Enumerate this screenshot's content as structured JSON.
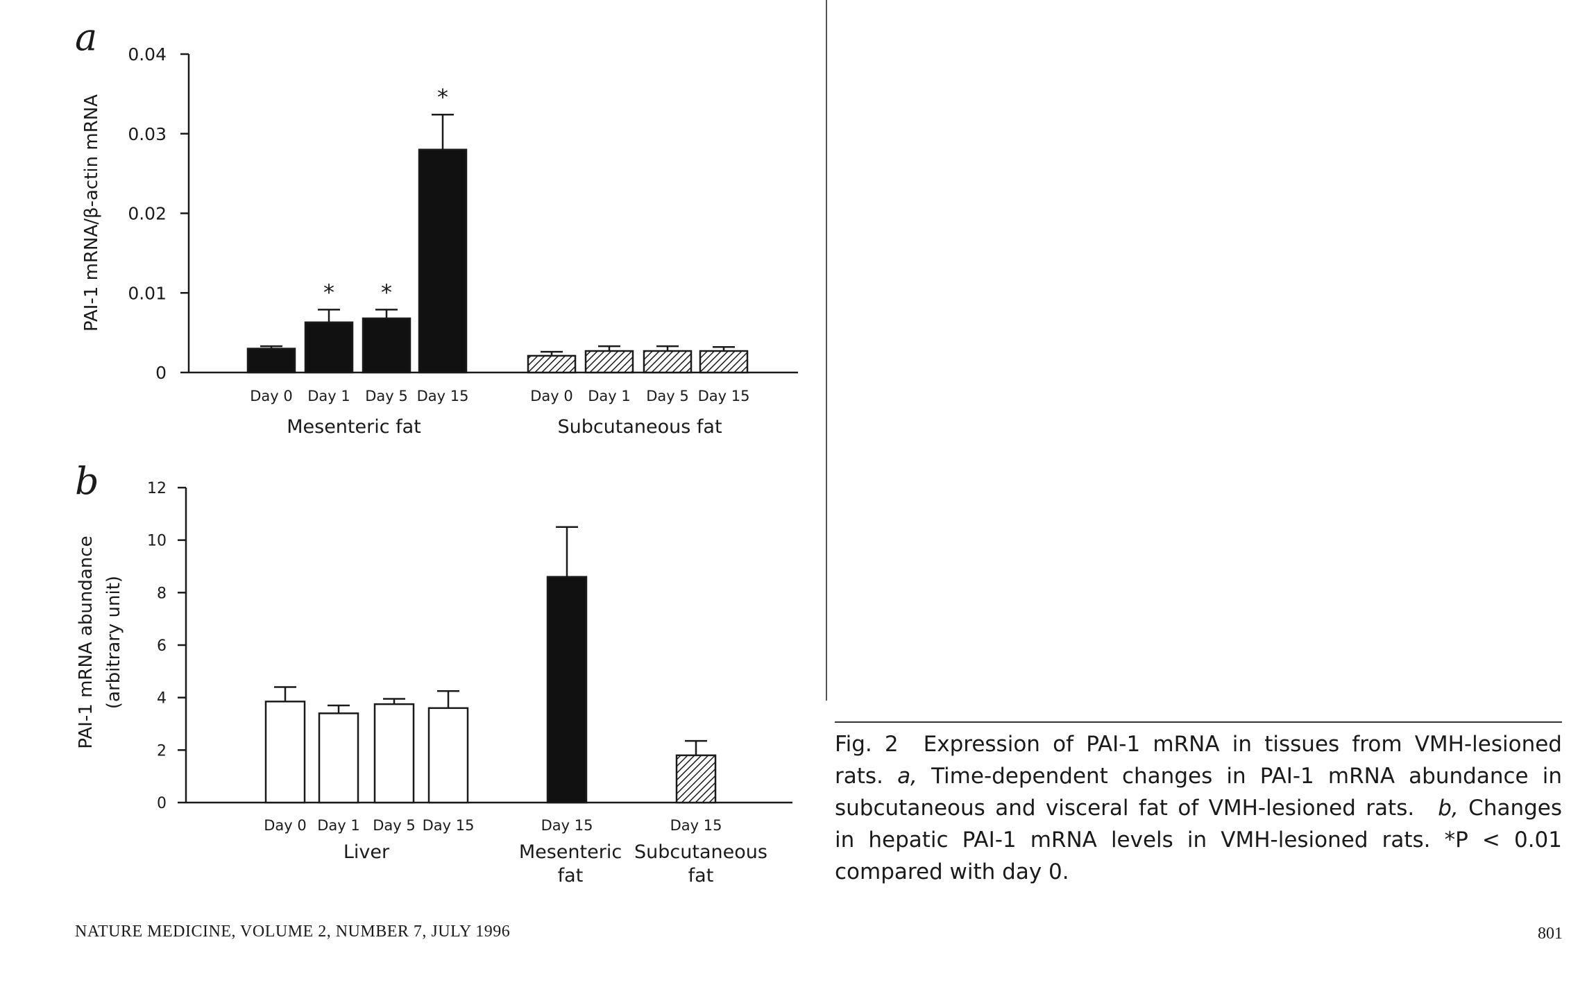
{
  "chart_data": [
    {
      "type": "bar",
      "panel_label": "a",
      "ylabel": "PAI-1 mRNA/β-actin mRNA",
      "ylim": [
        0,
        0.04
      ],
      "yticks": [
        0,
        0.01,
        0.02,
        0.03,
        0.04
      ],
      "ytick_labels": [
        "0",
        "0.01",
        "0.02",
        "0.03",
        "0.04"
      ],
      "groups": [
        {
          "label": "Mesenteric fat",
          "fill": "solid",
          "categories": [
            "Day 0",
            "Day 1",
            "Day 5",
            "Day 15"
          ],
          "values": [
            0.003,
            0.0063,
            0.0068,
            0.028
          ],
          "errors": [
            0.0003,
            0.0016,
            0.0011,
            0.0044
          ],
          "significance": [
            "",
            "*",
            "*",
            "*"
          ]
        },
        {
          "label": "Subcutaneous fat",
          "fill": "hatched",
          "categories": [
            "Day 0",
            "Day 1",
            "Day 5",
            "Day 15"
          ],
          "values": [
            0.0021,
            0.0027,
            0.0027,
            0.0027
          ],
          "errors": [
            0.0005,
            0.0006,
            0.0006,
            0.0005
          ],
          "significance": [
            "",
            "",
            "",
            ""
          ]
        }
      ]
    },
    {
      "type": "bar",
      "panel_label": "b",
      "ylabel": "PAI-1 mRNA abundance",
      "ylabel2": "(arbitrary unit)",
      "ylim": [
        0,
        12
      ],
      "yticks": [
        0,
        2,
        4,
        6,
        8,
        10,
        12
      ],
      "ytick_labels": [
        "0",
        "2",
        "4",
        "6",
        "8",
        "10",
        "12"
      ],
      "groups": [
        {
          "label": "Liver",
          "fill": "open",
          "categories": [
            "Day 0",
            "Day 1",
            "Day 5",
            "Day 15"
          ],
          "values": [
            3.85,
            3.4,
            3.75,
            3.6
          ],
          "errors": [
            0.55,
            0.3,
            0.2,
            0.65
          ]
        },
        {
          "label": "Mesenteric",
          "label2": "fat",
          "fill": "solid",
          "categories": [
            "Day 15"
          ],
          "values": [
            8.6
          ],
          "errors": [
            1.9
          ]
        },
        {
          "label": "Subcutaneous",
          "label2": "fat",
          "fill": "hatched",
          "categories": [
            "Day 15"
          ],
          "values": [
            1.8
          ],
          "errors": [
            0.55
          ]
        }
      ]
    }
  ],
  "caption": {
    "fig_label": "Fig. 2",
    "title": "Expression of PAI-1 mRNA in tissues from VMH-lesioned rats.",
    "a_letter": "a,",
    "a_text": "Time-dependent changes in PAI-1 mRNA abundance in subcuta­neous and visceral fat of VMH-lesioned rats.",
    "b_letter": "b,",
    "b_text": "Changes in hepatic PAI-1 mRNA levels in VMH-lesioned rats. *P < 0.01 compared with day 0."
  },
  "footer": {
    "journal": "NATURE MEDICINE, VOLUME 2, NUMBER 7, JULY 1996",
    "page": "801"
  }
}
